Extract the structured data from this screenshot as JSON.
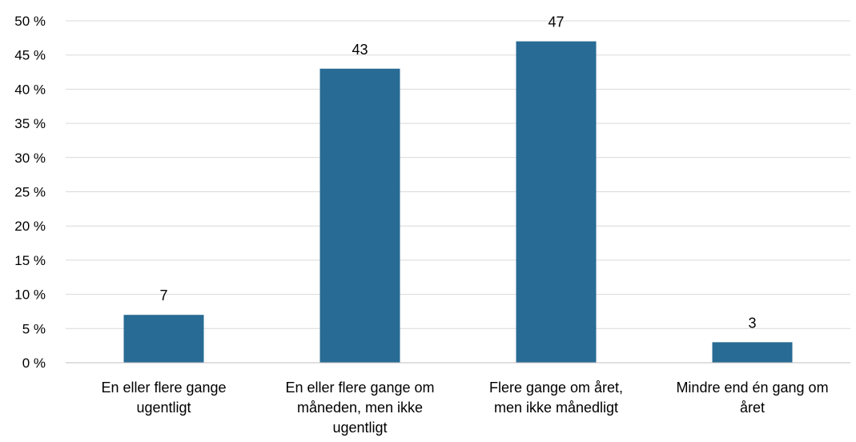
{
  "chart_data": {
    "type": "bar",
    "title": "",
    "xlabel": "",
    "ylabel": "",
    "categories": [
      [
        "En eller flere gange",
        "ugentligt"
      ],
      [
        "En eller flere gange om",
        "måneden, men ikke",
        "ugentligt"
      ],
      [
        "Flere gange om året,",
        "men ikke månedligt"
      ],
      [
        "Mindre end én gang om",
        "året"
      ]
    ],
    "values": [
      7,
      43,
      47,
      3
    ],
    "data_labels": [
      "7",
      "43",
      "47",
      "3"
    ],
    "ylim": [
      0,
      50
    ],
    "yticks": [
      0,
      5,
      10,
      15,
      20,
      25,
      30,
      35,
      40,
      45,
      50
    ],
    "ytick_labels": [
      "0 %",
      "5 %",
      "10 %",
      "15 %",
      "20 %",
      "25 %",
      "30 %",
      "35 %",
      "40 %",
      "45 %",
      "50 %"
    ],
    "grid": true,
    "legend": "none",
    "bar_color": "#286b94"
  }
}
